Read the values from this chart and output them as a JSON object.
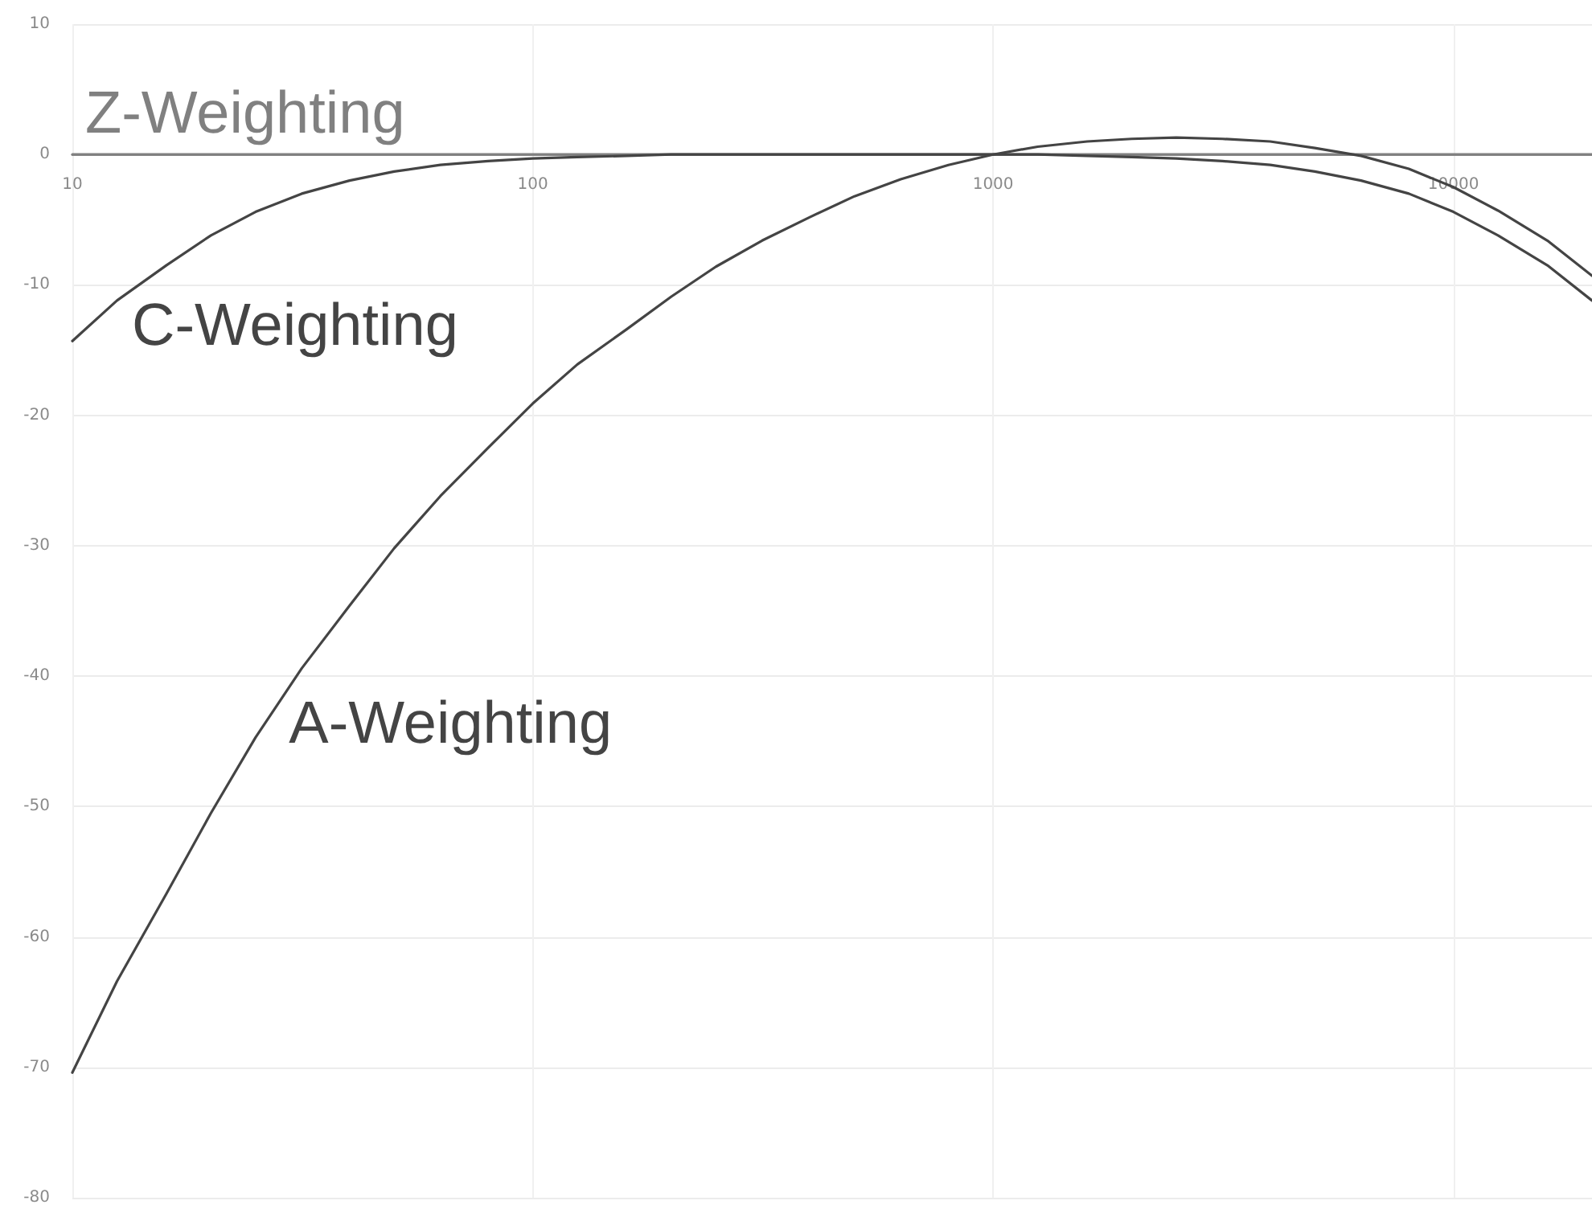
{
  "chart_data": {
    "type": "line",
    "x": [
      10,
      12.5,
      16,
      20,
      25,
      31.5,
      40,
      50,
      63,
      80,
      100,
      125,
      160,
      200,
      250,
      315,
      400,
      500,
      630,
      800,
      1000,
      1250,
      1600,
      2000,
      2500,
      3150,
      4000,
      5000,
      6300,
      8000,
      10000,
      12500,
      16000,
      20000
    ],
    "xlim": [
      10,
      20000
    ],
    "xticks": [
      10,
      100,
      1000,
      10000
    ],
    "ylim": [
      -80,
      10
    ],
    "yticks": [
      -80,
      -70,
      -60,
      -50,
      -40,
      -30,
      -20,
      -10,
      0,
      10
    ],
    "log": "x",
    "grid": true,
    "marker": "none",
    "line_style": "solid",
    "series": [
      {
        "name": "A-Weighting",
        "color": "#444444",
        "values": [
          -70.4,
          -63.4,
          -56.7,
          -50.5,
          -44.7,
          -39.4,
          -34.6,
          -30.2,
          -26.2,
          -22.5,
          -19.1,
          -16.1,
          -13.4,
          -10.9,
          -8.6,
          -6.6,
          -4.8,
          -3.2,
          -1.9,
          -0.8,
          0,
          0.6,
          1.0,
          1.2,
          1.3,
          1.2,
          1.0,
          0.5,
          -0.1,
          -1.1,
          -2.5,
          -4.3,
          -6.6,
          -9.3
        ]
      },
      {
        "name": "C-Weighting",
        "color": "#444444",
        "values": [
          -14.3,
          -11.2,
          -8.5,
          -6.2,
          -4.4,
          -3.0,
          -2.0,
          -1.3,
          -0.8,
          -0.5,
          -0.3,
          -0.2,
          -0.1,
          0,
          0,
          0,
          0,
          0,
          0,
          0,
          0,
          0,
          -0.1,
          -0.2,
          -0.3,
          -0.5,
          -0.8,
          -1.3,
          -2.0,
          -3.0,
          -4.4,
          -6.2,
          -8.5,
          -11.2
        ]
      },
      {
        "name": "Z-Weighting",
        "color": "#808080",
        "values": [
          0,
          0,
          0,
          0,
          0,
          0,
          0,
          0,
          0,
          0,
          0,
          0,
          0,
          0,
          0,
          0,
          0,
          0,
          0,
          0,
          0,
          0,
          0,
          0,
          0,
          0,
          0,
          0,
          0,
          0,
          0,
          0,
          0,
          0
        ]
      }
    ]
  }
}
